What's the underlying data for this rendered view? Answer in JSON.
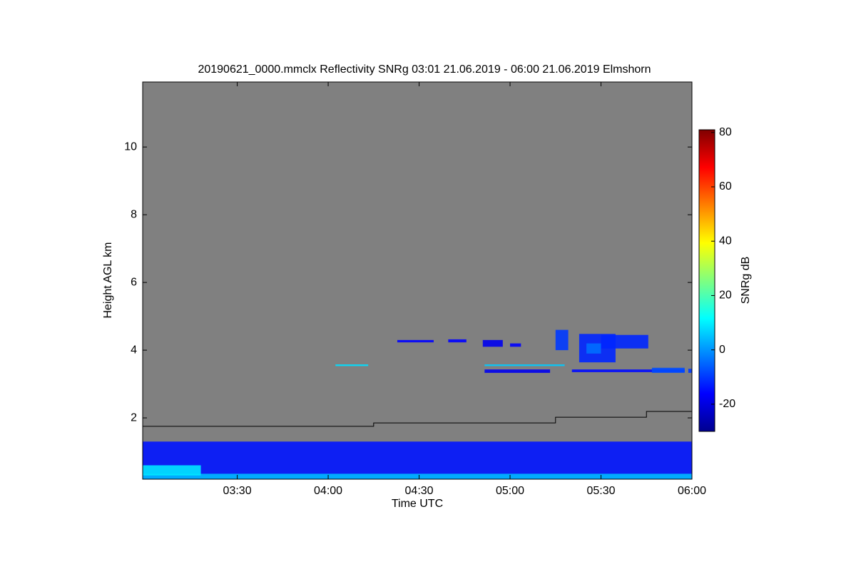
{
  "chart_data": {
    "type": "heatmap",
    "title": "20190621_0000.mmclx Reflectivity SNRg   03:01 21.06.2019 - 06:00 21.06.2019 Elmshorn",
    "xlabel": "Time UTC",
    "ylabel": "Height AGL km",
    "xlim": [
      2.98,
      6.0
    ],
    "xticks": [
      {
        "value": 3.5,
        "label": "03:30"
      },
      {
        "value": 4.0,
        "label": "04:00"
      },
      {
        "value": 4.5,
        "label": "04:30"
      },
      {
        "value": 5.0,
        "label": "05:00"
      },
      {
        "value": 5.5,
        "label": "05:30"
      },
      {
        "value": 6.0,
        "label": "06:00"
      }
    ],
    "ylim": [
      0.19,
      11.92
    ],
    "yticks": [
      2,
      4,
      6,
      8,
      10
    ],
    "background": "#808080",
    "colorbar": {
      "label": "SNRg dB",
      "lim": [
        -30,
        81
      ],
      "ticks": [
        -20,
        0,
        20,
        40,
        60,
        80
      ]
    },
    "cells": [
      {
        "x": [
          2.98,
          6.0
        ],
        "y": [
          0.19,
          1.3
        ],
        "value": -14
      },
      {
        "x": [
          2.98,
          6.0
        ],
        "y": [
          0.19,
          0.35
        ],
        "value": 4
      },
      {
        "x": [
          2.98,
          3.3
        ],
        "y": [
          0.3,
          0.6
        ],
        "value": 9
      },
      {
        "x": [
          4.38,
          4.58
        ],
        "y": [
          4.23,
          4.3
        ],
        "value": -16
      },
      {
        "x": [
          4.66,
          4.76
        ],
        "y": [
          4.23,
          4.32
        ],
        "value": -16
      },
      {
        "x": [
          4.85,
          4.96
        ],
        "y": [
          4.1,
          4.3
        ],
        "value": -18
      },
      {
        "x": [
          5.0,
          5.06
        ],
        "y": [
          4.1,
          4.2
        ],
        "value": -16
      },
      {
        "x": [
          4.04,
          4.22
        ],
        "y": [
          3.53,
          3.58
        ],
        "value": 8
      },
      {
        "x": [
          4.86,
          5.3
        ],
        "y": [
          3.53,
          3.58
        ],
        "value": 6
      },
      {
        "x": [
          4.86,
          5.22
        ],
        "y": [
          3.33,
          3.43
        ],
        "value": -18
      },
      {
        "x": [
          5.34,
          5.96
        ],
        "y": [
          3.35,
          3.43
        ],
        "value": -15
      },
      {
        "x": [
          5.78,
          5.96
        ],
        "y": [
          3.33,
          3.48
        ],
        "value": -8
      },
      {
        "x": [
          5.98,
          6.0
        ],
        "y": [
          3.33,
          3.45
        ],
        "value": -10
      },
      {
        "x": [
          5.25,
          5.32
        ],
        "y": [
          4.0,
          4.6
        ],
        "value": -10
      },
      {
        "x": [
          5.38,
          5.58
        ],
        "y": [
          3.64,
          4.48
        ],
        "value": -12
      },
      {
        "x": [
          5.5,
          5.76
        ],
        "y": [
          4.05,
          4.45
        ],
        "value": -12
      },
      {
        "x": [
          5.42,
          5.5
        ],
        "y": [
          3.9,
          4.2
        ],
        "value": -4
      }
    ],
    "series": [
      {
        "color": "#000000",
        "x": [
          2.98,
          4.25,
          5.25,
          5.75,
          6.0
        ],
        "values": [
          1.75,
          1.85,
          2.02,
          2.19,
          2.19
        ]
      }
    ]
  }
}
